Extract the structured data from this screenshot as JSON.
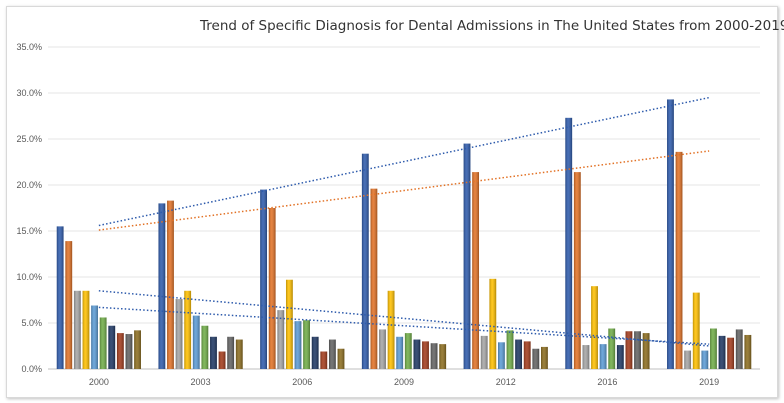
{
  "chart_data": {
    "type": "bar",
    "title": "Trend of Specific Diagnosis for Dental Admissions in The United States from 2000-2019",
    "xlabel": "",
    "ylabel": "",
    "categories": [
      "2000",
      "2003",
      "2006",
      "2009",
      "2012",
      "2016",
      "2019"
    ],
    "ylim": [
      0,
      0.35
    ],
    "yticks": [
      "0.0%",
      "5.0%",
      "10.0%",
      "15.0%",
      "20.0%",
      "25.0%",
      "30.0%",
      "35.0%"
    ],
    "grid": true,
    "legend": "none",
    "series": [
      {
        "color": "#2e5bac",
        "values": [
          0.155,
          0.18,
          0.195,
          0.234,
          0.245,
          0.273,
          0.293
        ]
      },
      {
        "color": "#e27226",
        "values": [
          0.139,
          0.183,
          0.175,
          0.196,
          0.214,
          0.214,
          0.236
        ]
      },
      {
        "color": "#a5a5a5",
        "values": [
          0.085,
          0.076,
          0.064,
          0.043,
          0.036,
          0.026,
          0.02
        ]
      },
      {
        "color": "#ffc000",
        "values": [
          0.085,
          0.085,
          0.097,
          0.085,
          0.098,
          0.09,
          0.083
        ]
      },
      {
        "color": "#5b9bd5",
        "values": [
          0.069,
          0.058,
          0.052,
          0.035,
          0.029,
          0.027,
          0.02
        ]
      },
      {
        "color": "#70ad47",
        "values": [
          0.056,
          0.047,
          0.053,
          0.039,
          0.042,
          0.044,
          0.044
        ]
      },
      {
        "color": "#1f3864",
        "values": [
          0.047,
          0.035,
          0.035,
          0.032,
          0.032,
          0.026,
          0.036
        ]
      },
      {
        "color": "#a33b1b",
        "values": [
          0.039,
          0.019,
          0.019,
          0.03,
          0.03,
          0.041,
          0.034
        ]
      },
      {
        "color": "#636363",
        "values": [
          0.038,
          0.035,
          0.032,
          0.028,
          0.022,
          0.041,
          0.043
        ]
      },
      {
        "color": "#8c6d1f",
        "values": [
          0.042,
          0.032,
          0.022,
          0.027,
          0.024,
          0.039,
          0.037
        ]
      }
    ],
    "trendlines": [
      {
        "color": "#2e5bac",
        "start": 0.156,
        "end": 0.295
      },
      {
        "color": "#e27226",
        "start": 0.151,
        "end": 0.237
      },
      {
        "color": "#2e5bac",
        "start": 0.085,
        "end": 0.025
      },
      {
        "color": "#2e5bac",
        "start": 0.067,
        "end": 0.027
      }
    ]
  }
}
